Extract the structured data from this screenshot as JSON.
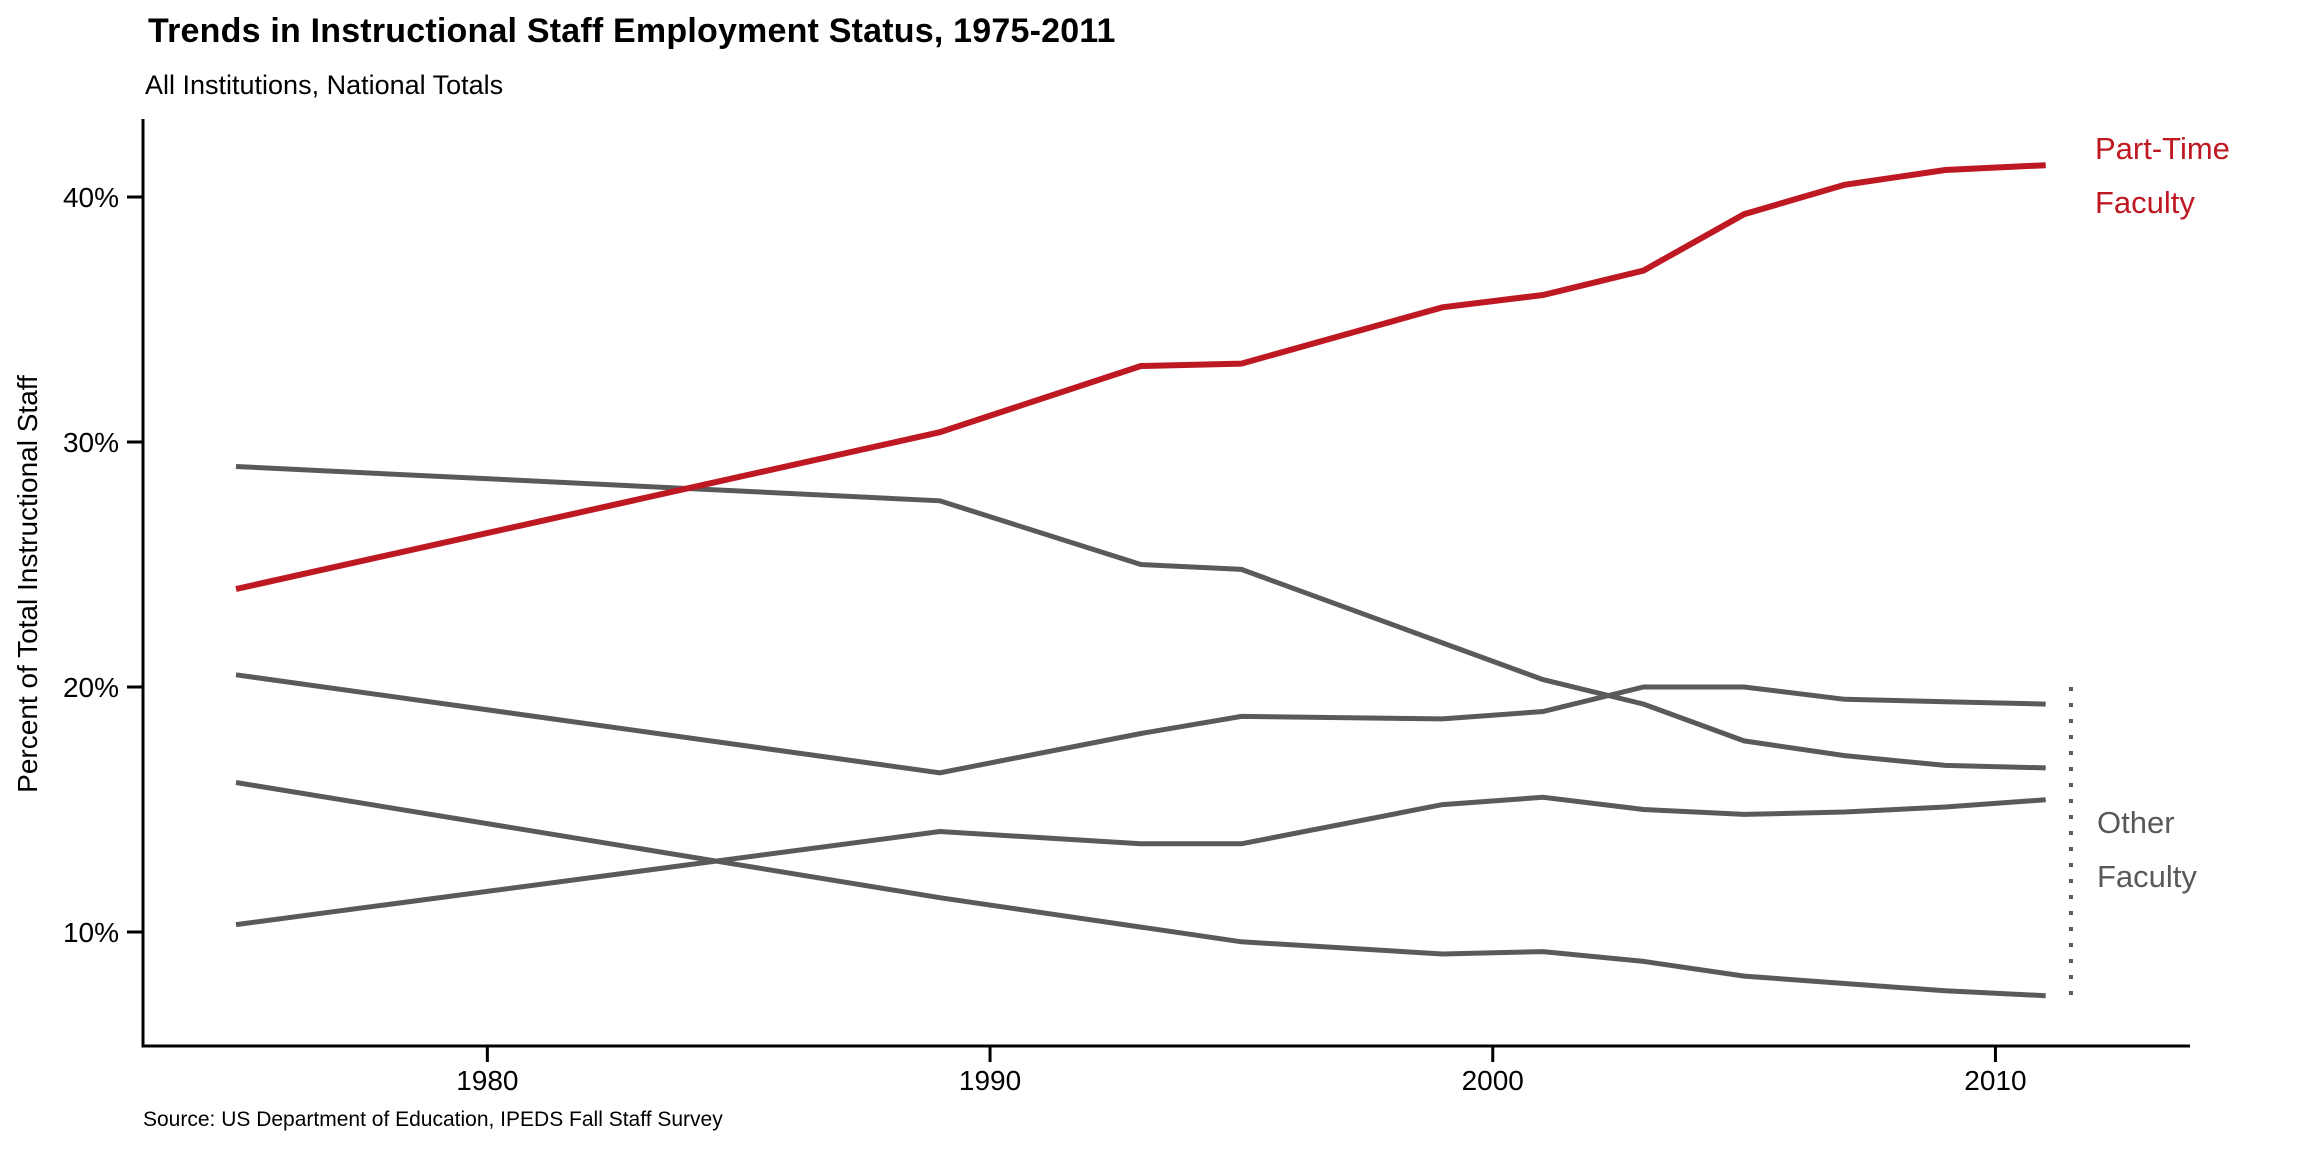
{
  "title": "Trends in Instructional Staff Employment Status, 1975-2011",
  "subtitle": "All Institutions, National Totals",
  "source_note": "Source: US Department of Education, IPEDS Fall Staff Survey",
  "colors": {
    "part_time_line": "#BE1823",
    "other_line": "#5A5A5A",
    "axis": "#000000",
    "other_label_text": "#595959"
  },
  "annotations": {
    "part_time": {
      "line1": "Part-Time",
      "line2": "Faculty"
    },
    "other": {
      "line1": "Other",
      "line2": "Faculty"
    }
  },
  "chart_data": {
    "type": "line",
    "title": "Trends in Instructional Staff Employment Status, 1975-2011",
    "subtitle": "All Institutions, National Totals",
    "xlabel": "",
    "ylabel": "Percent of Total Instructional Staff",
    "x": [
      1975,
      1989,
      1993,
      1995,
      1999,
      2001,
      2003,
      2005,
      2007,
      2009,
      2011
    ],
    "series": [
      {
        "name": "Part-Time Faculty",
        "group_label": "Part-Time Faculty",
        "color": "#BE1823",
        "width": 6,
        "values": [
          24.0,
          30.4,
          33.1,
          33.2,
          35.5,
          36.0,
          37.0,
          39.3,
          40.5,
          41.1,
          41.3
        ]
      },
      {
        "name": "Other Faculty (line 1)",
        "group_label": "Other Faculty",
        "color": "#5A5A5A",
        "width": 5,
        "values": [
          29.0,
          27.6,
          25.0,
          24.8,
          21.8,
          20.3,
          19.3,
          17.8,
          17.2,
          16.8,
          16.7
        ]
      },
      {
        "name": "Other Faculty (line 2)",
        "group_label": "Other Faculty",
        "color": "#5A5A5A",
        "width": 5,
        "values": [
          20.5,
          16.5,
          18.1,
          18.8,
          18.7,
          19.0,
          20.0,
          20.0,
          19.5,
          19.4,
          19.3
        ]
      },
      {
        "name": "Other Faculty (line 3)",
        "group_label": "Other Faculty",
        "color": "#5A5A5A",
        "width": 5,
        "values": [
          16.1,
          11.4,
          10.2,
          9.6,
          9.1,
          9.2,
          8.8,
          8.2,
          7.9,
          7.6,
          7.4
        ]
      },
      {
        "name": "Other Faculty (line 4)",
        "group_label": "Other Faculty",
        "color": "#5A5A5A",
        "width": 5,
        "values": [
          10.3,
          14.1,
          13.6,
          13.6,
          15.2,
          15.5,
          15.0,
          14.8,
          14.9,
          15.1,
          15.4
        ]
      }
    ],
    "x_ticks": [
      1980,
      1990,
      2000,
      2010
    ],
    "x_tick_labels": [
      "1980",
      "1990",
      "2000",
      "2010"
    ],
    "y_ticks": [
      10,
      20,
      30,
      40
    ],
    "y_tick_labels": [
      "10%",
      "20%",
      "30%",
      "40%"
    ],
    "xlim": [
      1973.2,
      2014.5
    ],
    "ylim": [
      5.4,
      43.9
    ],
    "grid": false,
    "legend_position": "right-annotations"
  }
}
